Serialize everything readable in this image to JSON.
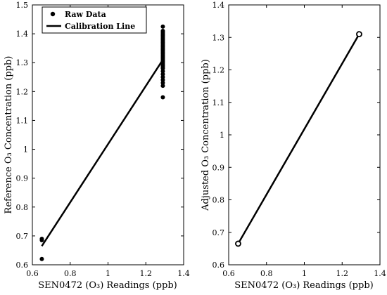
{
  "chart_data": [
    {
      "type": "scatter",
      "title": "",
      "xlabel": "SEN0472 (O₃) Readings (ppb)",
      "ylabel": "Reference O₃ Concentration (ppb)",
      "xlim": [
        0.6,
        1.4
      ],
      "ylim": [
        0.6,
        1.5
      ],
      "xticks": [
        "0.6",
        "0.8",
        "1",
        "1.2",
        "1.4"
      ],
      "yticks": [
        "0.6",
        "0.7",
        "0.8",
        "0.9",
        "1",
        "1.1",
        "1.2",
        "1.3",
        "1.4",
        "1.5"
      ],
      "grid": false,
      "legend": {
        "placement": "top-left",
        "entries": [
          "Raw Data",
          "Calibration Line"
        ]
      },
      "series": [
        {
          "name": "Raw Data",
          "kind": "points",
          "color": "#000000",
          "x": [
            0.65,
            0.65,
            0.65,
            1.29,
            1.29,
            1.29,
            1.29,
            1.29,
            1.29,
            1.29,
            1.29,
            1.29,
            1.29,
            1.29,
            1.29,
            1.29,
            1.29,
            1.29,
            1.29,
            1.29,
            1.29,
            1.29,
            1.29,
            1.29,
            1.29,
            1.29,
            1.29,
            1.29,
            1.29,
            1.29,
            1.29,
            1.29,
            1.29,
            1.29,
            1.29,
            1.29,
            1.29,
            1.29
          ],
          "y": [
            0.62,
            0.685,
            0.69,
            1.18,
            1.22,
            1.23,
            1.24,
            1.25,
            1.26,
            1.27,
            1.28,
            1.29,
            1.3,
            1.31,
            1.32,
            1.33,
            1.335,
            1.34,
            1.345,
            1.35,
            1.355,
            1.36,
            1.365,
            1.37,
            1.375,
            1.38,
            1.385,
            1.39,
            1.395,
            1.4,
            1.405,
            1.41,
            1.425,
            1.305,
            1.315,
            1.325,
            1.285,
            1.295
          ]
        },
        {
          "name": "Calibration Line",
          "kind": "line",
          "color": "#000000",
          "x": [
            0.65,
            1.29
          ],
          "y": [
            0.665,
            1.31
          ]
        }
      ]
    },
    {
      "type": "line",
      "title": "",
      "xlabel": "SEN0472 (O₃) Readings (ppb)",
      "ylabel": "Adjusted O₃ Concentration (ppb)",
      "xlim": [
        0.6,
        1.4
      ],
      "ylim": [
        0.6,
        1.4
      ],
      "xticks": [
        "0.6",
        "0.8",
        "1",
        "1.2",
        "1.4"
      ],
      "yticks": [
        "0.6",
        "0.7",
        "0.8",
        "0.9",
        "1",
        "1.1",
        "1.2",
        "1.3",
        "1.4"
      ],
      "grid": false,
      "series": [
        {
          "kind": "line-open-markers",
          "color": "#000000",
          "x": [
            0.65,
            1.29
          ],
          "y": [
            0.665,
            1.31
          ]
        }
      ]
    }
  ]
}
